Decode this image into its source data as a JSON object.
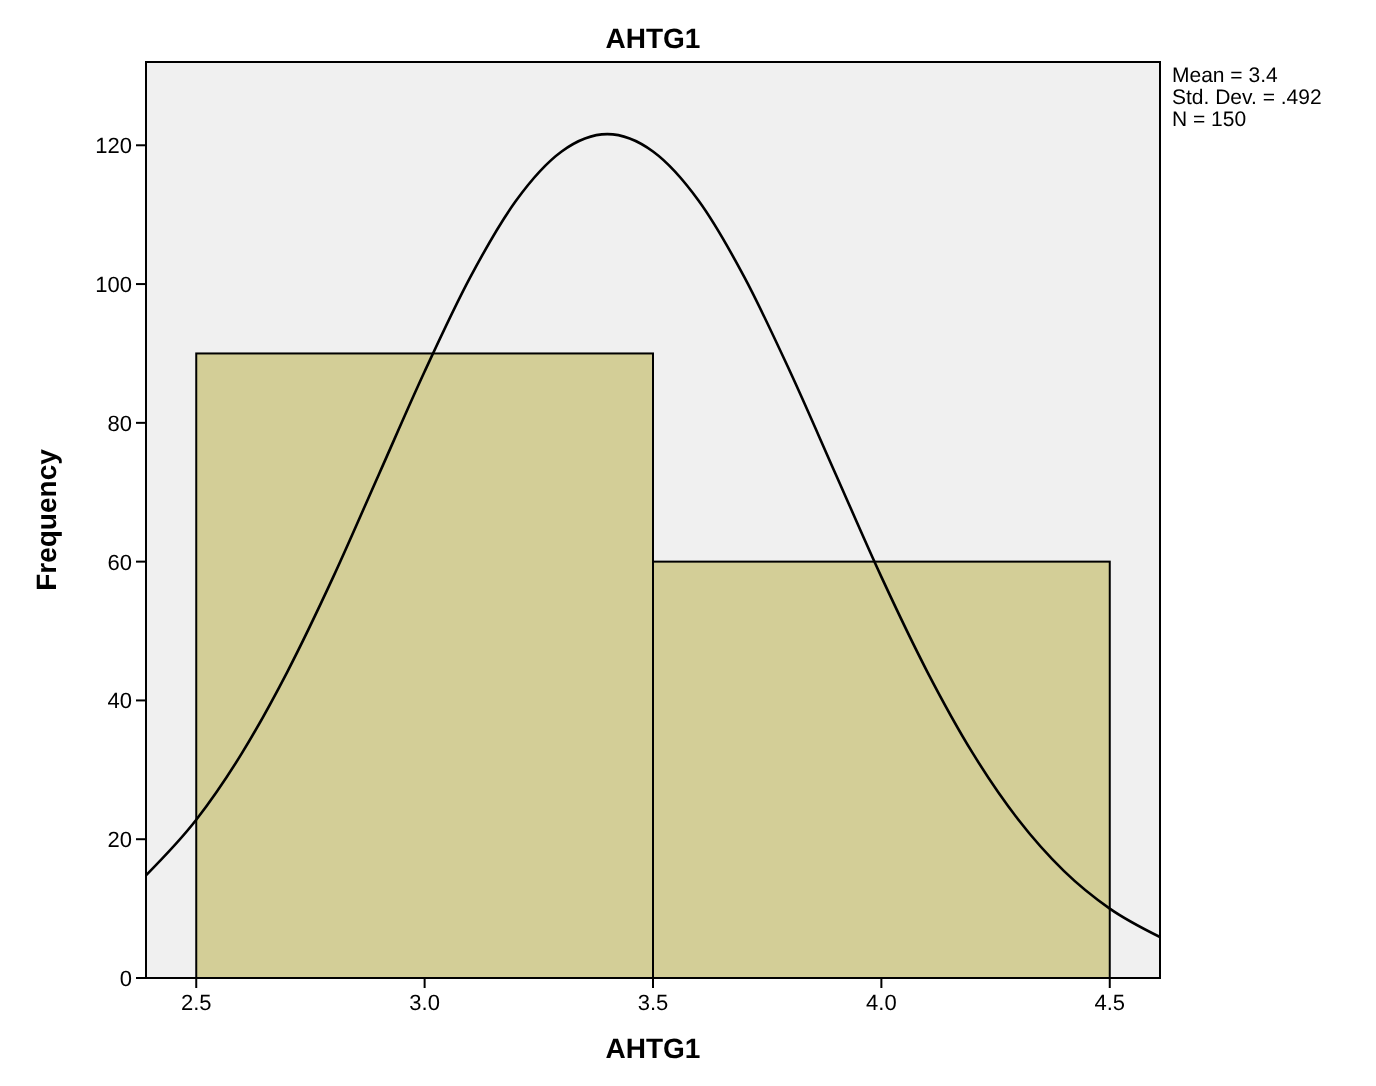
{
  "chart_data": {
    "type": "histogram",
    "title": "AHTG1",
    "xlabel": "AHTG1",
    "ylabel": "Frequency",
    "bins": [
      2.5,
      3.5,
      4.5
    ],
    "values": [
      90,
      60
    ],
    "color": "#d3ce97",
    "series": [
      {
        "type": "line",
        "color": "#000000",
        "x": [
          2.39,
          2.5,
          2.6,
          2.7,
          2.8,
          2.9,
          3.0,
          3.1,
          3.2,
          3.3,
          3.4,
          3.5,
          3.6,
          3.7,
          3.8,
          3.9,
          4.0,
          4.1,
          4.2,
          4.3,
          4.4,
          4.5,
          4.61
        ],
        "values": [
          14.8,
          22.8,
          32.4,
          44.2,
          57.8,
          72.6,
          87.4,
          101.0,
          112.0,
          119.1,
          121.6,
          119.1,
          112.0,
          101.0,
          87.4,
          72.6,
          57.8,
          44.2,
          32.4,
          22.8,
          15.4,
          10.0,
          5.9
        ]
      }
    ],
    "xlim": [
      2.39,
      4.61
    ],
    "ylim": [
      0,
      132
    ],
    "xticks": [
      2.5,
      {
        "value": 3,
        "label": "3.0"
      },
      3.5,
      {
        "value": 4,
        "label": "4.0"
      },
      4.5
    ],
    "yticks": [
      0,
      20,
      40,
      60,
      80,
      100,
      120
    ],
    "annotations": [
      "Mean = 3.4",
      "Std. Dev. = .492",
      "N = 150"
    ]
  }
}
